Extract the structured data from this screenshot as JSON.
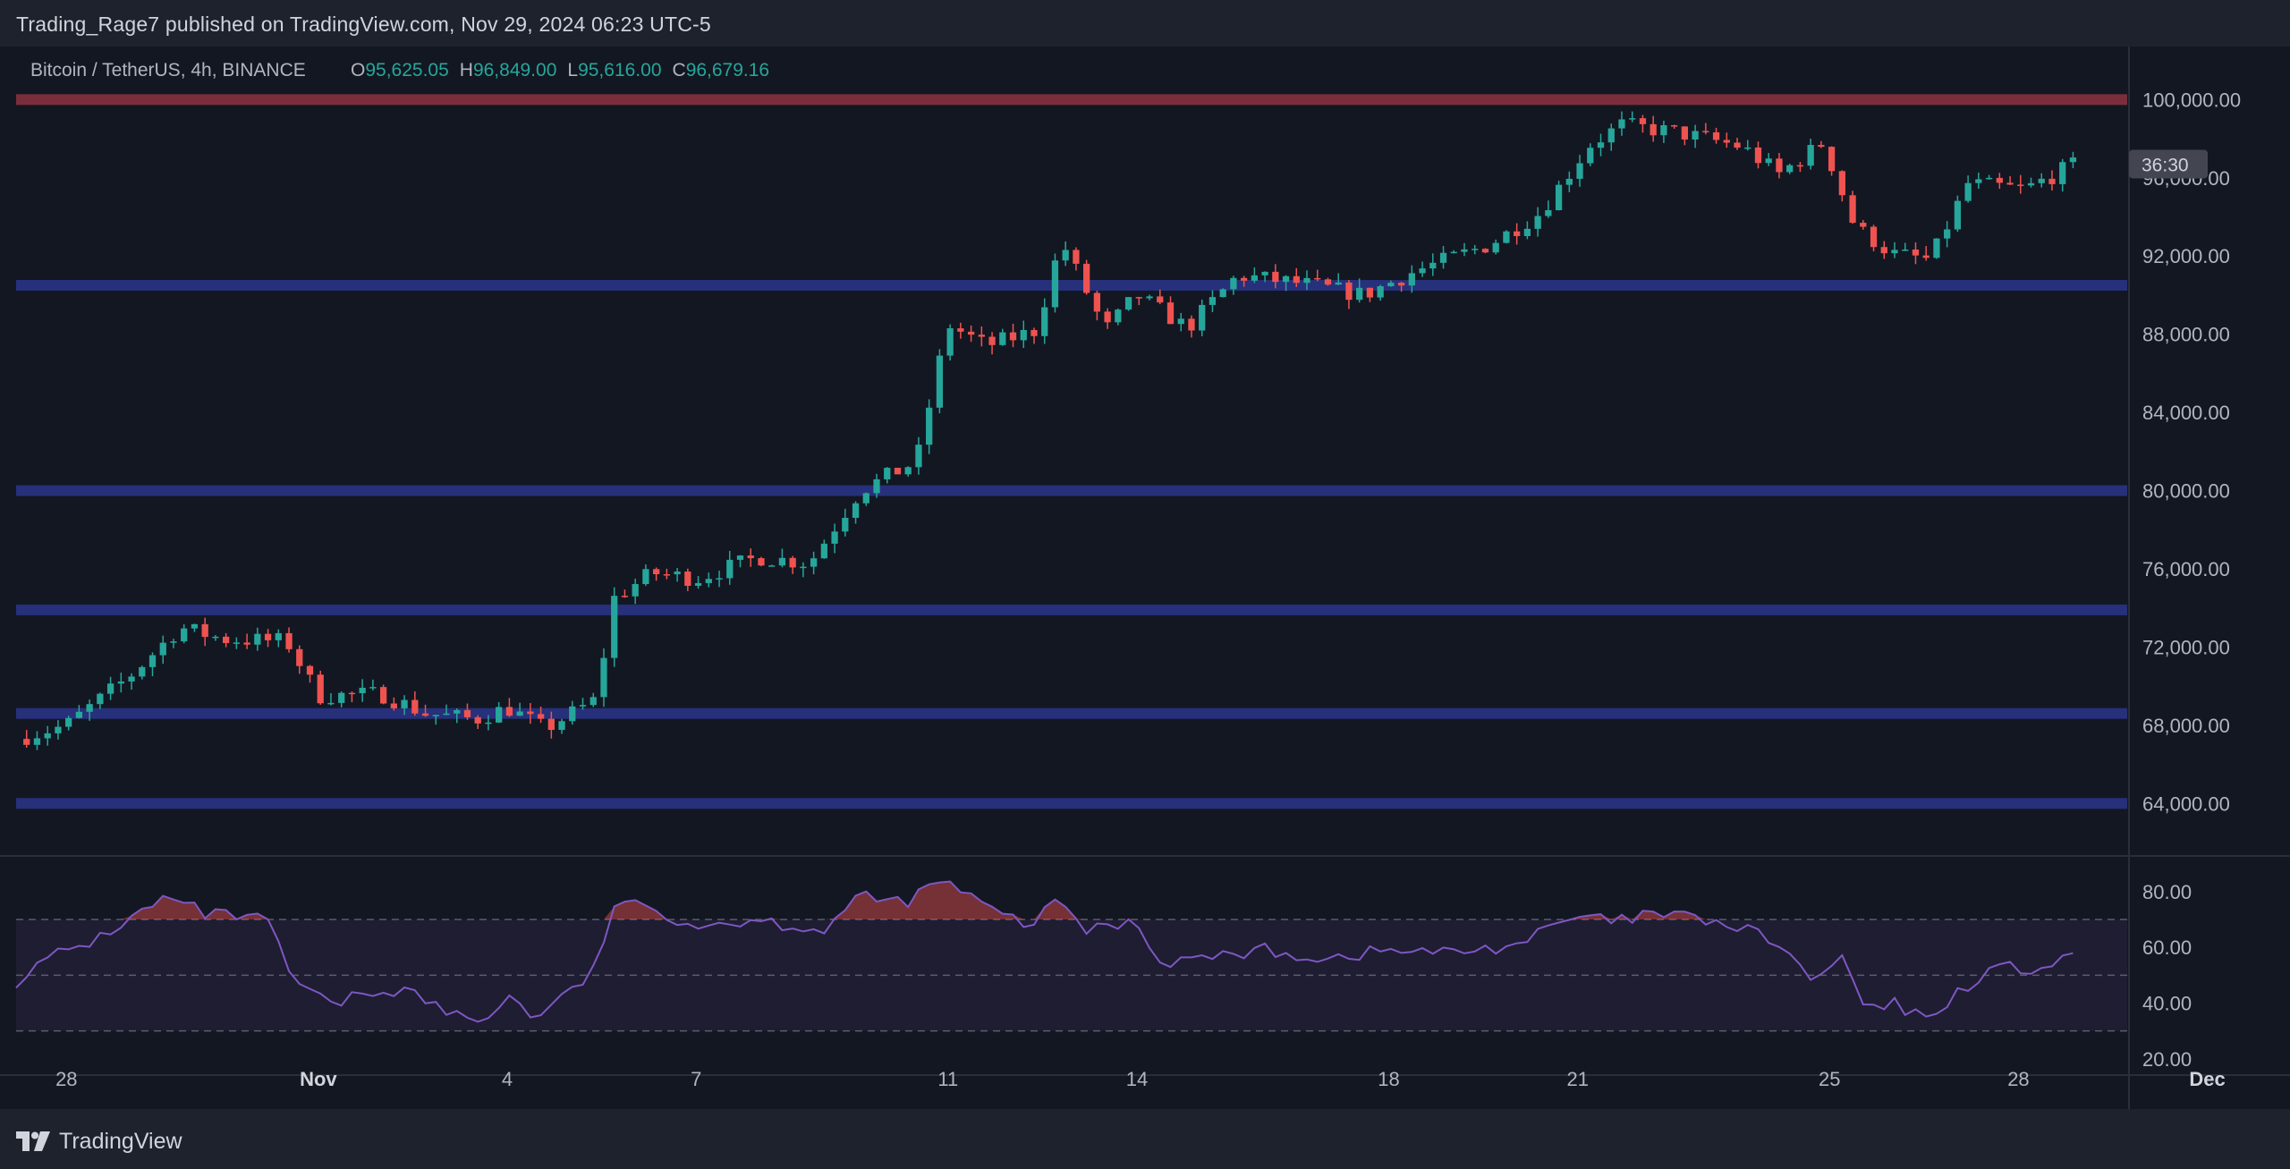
{
  "header": {
    "publisher_text": "Trading_Rage7 published on TradingView.com, Nov 29, 2024 06:23 UTC-5"
  },
  "footer": {
    "brand_text": "TradingView",
    "logo_icon": "tradingview-logo-icon"
  },
  "chart_data": {
    "type": "candlestick",
    "symbol": "Bitcoin / TetherUS, 4h, BINANCE",
    "ohlc_legend": {
      "o_label": "O",
      "o_value": "95,625.05",
      "h_label": "H",
      "h_value": "96,849.00",
      "l_label": "L",
      "l_value": "95,616.00",
      "c_label": "C",
      "c_value": "96,679.16"
    },
    "countdown": "36:30",
    "price_ylim": [
      62000,
      101800
    ],
    "price_ticks": [
      "100,000.00",
      "96,000.00",
      "92,000.00",
      "88,000.00",
      "84,000.00",
      "80,000.00",
      "76,000.00",
      "72,000.00",
      "68,000.00",
      "64,000.00"
    ],
    "price_tick_values": [
      100000,
      96000,
      92000,
      88000,
      84000,
      80000,
      76000,
      72000,
      68000,
      64000
    ],
    "x_ticks": [
      {
        "label": "28",
        "day": -3
      },
      {
        "label": "Nov",
        "day": 1
      },
      {
        "label": "4",
        "day": 4
      },
      {
        "label": "7",
        "day": 7
      },
      {
        "label": "11",
        "day": 11
      },
      {
        "label": "14",
        "day": 14
      },
      {
        "label": "18",
        "day": 18
      },
      {
        "label": "21",
        "day": 21
      },
      {
        "label": "25",
        "day": 25
      },
      {
        "label": "28",
        "day": 28
      },
      {
        "label": "Dec",
        "day": 31
      }
    ],
    "x_range_days": [
      -3.8,
      32.0
    ],
    "levels": [
      {
        "price": 100000,
        "color": "#7a2e3b"
      },
      {
        "price": 90500,
        "color": "#27307a"
      },
      {
        "price": 80000,
        "color": "#27307a"
      },
      {
        "price": 73900,
        "color": "#27307a"
      },
      {
        "price": 68600,
        "color": "#27307a"
      },
      {
        "price": 64000,
        "color": "#27307a"
      }
    ],
    "price_path": [
      {
        "d": -3.8,
        "p": 67300
      },
      {
        "d": -3.0,
        "p": 68000
      },
      {
        "d": -2.0,
        "p": 70500
      },
      {
        "d": -1.2,
        "p": 73000
      },
      {
        "d": -0.5,
        "p": 72400
      },
      {
        "d": 0.5,
        "p": 72300
      },
      {
        "d": 1.0,
        "p": 69500
      },
      {
        "d": 2.0,
        "p": 69600
      },
      {
        "d": 2.7,
        "p": 68600
      },
      {
        "d": 3.5,
        "p": 68300
      },
      {
        "d": 4.0,
        "p": 68900
      },
      {
        "d": 4.6,
        "p": 67800
      },
      {
        "d": 5.4,
        "p": 69300
      },
      {
        "d": 5.7,
        "p": 74500
      },
      {
        "d": 6.3,
        "p": 75800
      },
      {
        "d": 7.0,
        "p": 75500
      },
      {
        "d": 8.0,
        "p": 76600
      },
      {
        "d": 8.8,
        "p": 76300
      },
      {
        "d": 9.6,
        "p": 80000
      },
      {
        "d": 10.5,
        "p": 81500
      },
      {
        "d": 11.0,
        "p": 88500
      },
      {
        "d": 11.6,
        "p": 87400
      },
      {
        "d": 12.4,
        "p": 88200
      },
      {
        "d": 12.8,
        "p": 92800
      },
      {
        "d": 13.5,
        "p": 88200
      },
      {
        "d": 14.0,
        "p": 90000
      },
      {
        "d": 14.8,
        "p": 88300
      },
      {
        "d": 15.6,
        "p": 91000
      },
      {
        "d": 16.6,
        "p": 90600
      },
      {
        "d": 17.6,
        "p": 90000
      },
      {
        "d": 18.4,
        "p": 91200
      },
      {
        "d": 19.6,
        "p": 92600
      },
      {
        "d": 20.4,
        "p": 94200
      },
      {
        "d": 21.2,
        "p": 97700
      },
      {
        "d": 21.7,
        "p": 98700
      },
      {
        "d": 22.6,
        "p": 98300
      },
      {
        "d": 23.6,
        "p": 97600
      },
      {
        "d": 24.2,
        "p": 96200
      },
      {
        "d": 24.9,
        "p": 97800
      },
      {
        "d": 25.4,
        "p": 93500
      },
      {
        "d": 26.0,
        "p": 92100
      },
      {
        "d": 26.6,
        "p": 91800
      },
      {
        "d": 27.2,
        "p": 95700
      },
      {
        "d": 28.1,
        "p": 95400
      },
      {
        "d": 28.9,
        "p": 96700
      }
    ],
    "rsi": {
      "ylim": [
        18,
        88
      ],
      "ticks": [
        "80.00",
        "60.00",
        "40.00",
        "20.00"
      ],
      "tick_values": [
        80,
        60,
        40,
        20
      ],
      "band": [
        30,
        70
      ],
      "midline": 50,
      "path": [
        {
          "d": -3.8,
          "v": 48
        },
        {
          "d": -3.2,
          "v": 57
        },
        {
          "d": -2.6,
          "v": 62
        },
        {
          "d": -2.0,
          "v": 70
        },
        {
          "d": -1.4,
          "v": 78
        },
        {
          "d": -0.8,
          "v": 72
        },
        {
          "d": -0.2,
          "v": 71
        },
        {
          "d": 0.2,
          "v": 69
        },
        {
          "d": 0.6,
          "v": 48
        },
        {
          "d": 1.2,
          "v": 39
        },
        {
          "d": 1.8,
          "v": 44
        },
        {
          "d": 2.4,
          "v": 45
        },
        {
          "d": 3.0,
          "v": 37
        },
        {
          "d": 3.6,
          "v": 33
        },
        {
          "d": 4.0,
          "v": 43
        },
        {
          "d": 4.4,
          "v": 35
        },
        {
          "d": 4.9,
          "v": 42
        },
        {
          "d": 5.4,
          "v": 52
        },
        {
          "d": 5.7,
          "v": 76
        },
        {
          "d": 6.4,
          "v": 73
        },
        {
          "d": 7.0,
          "v": 68
        },
        {
          "d": 8.0,
          "v": 70
        },
        {
          "d": 9.0,
          "v": 66
        },
        {
          "d": 9.6,
          "v": 78
        },
        {
          "d": 10.3,
          "v": 76
        },
        {
          "d": 10.9,
          "v": 84
        },
        {
          "d": 11.3,
          "v": 79
        },
        {
          "d": 11.7,
          "v": 73
        },
        {
          "d": 12.3,
          "v": 68
        },
        {
          "d": 12.8,
          "v": 77
        },
        {
          "d": 13.2,
          "v": 66
        },
        {
          "d": 14.0,
          "v": 70
        },
        {
          "d": 14.3,
          "v": 55
        },
        {
          "d": 15.0,
          "v": 56
        },
        {
          "d": 16.0,
          "v": 59
        },
        {
          "d": 17.0,
          "v": 56
        },
        {
          "d": 18.0,
          "v": 59
        },
        {
          "d": 19.0,
          "v": 58
        },
        {
          "d": 20.0,
          "v": 61
        },
        {
          "d": 21.0,
          "v": 71
        },
        {
          "d": 21.6,
          "v": 69
        },
        {
          "d": 22.2,
          "v": 72
        },
        {
          "d": 23.0,
          "v": 70
        },
        {
          "d": 24.0,
          "v": 64
        },
        {
          "d": 24.4,
          "v": 56
        },
        {
          "d": 24.8,
          "v": 47
        },
        {
          "d": 25.2,
          "v": 57
        },
        {
          "d": 25.6,
          "v": 36
        },
        {
          "d": 26.0,
          "v": 40
        },
        {
          "d": 26.5,
          "v": 34
        },
        {
          "d": 27.0,
          "v": 43
        },
        {
          "d": 27.6,
          "v": 53
        },
        {
          "d": 28.2,
          "v": 52
        },
        {
          "d": 28.9,
          "v": 56
        }
      ]
    },
    "colors": {
      "up": "#26a69a",
      "down": "#ef5350",
      "rsi_line": "#7e57c2",
      "rsi_band": "#7e57c2",
      "background": "#131722",
      "text": "#b2b5be"
    }
  }
}
